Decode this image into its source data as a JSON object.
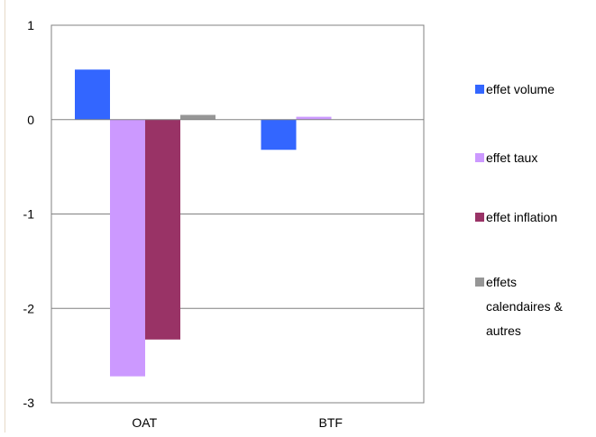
{
  "chart_data": {
    "type": "bar",
    "categories": [
      "OAT",
      "BTF"
    ],
    "ylim": [
      -3,
      1
    ],
    "yticks": [
      1,
      0,
      -1,
      -2,
      -3
    ],
    "grid": true,
    "legend_position": "right",
    "series": [
      {
        "name": "effet volume",
        "color": "#3366ff",
        "values": [
          0.53,
          -0.32
        ]
      },
      {
        "name": "effet taux",
        "color": "#cc99ff",
        "values": [
          -2.72,
          0.03
        ]
      },
      {
        "name": "effet inflation",
        "color": "#993366",
        "values": [
          -2.33,
          0
        ]
      },
      {
        "name": "effets calendaires & autres",
        "legend_lines": [
          "effets",
          "calendaires &",
          "autres"
        ],
        "color": "#969696",
        "values": [
          0.05,
          0
        ]
      }
    ]
  }
}
